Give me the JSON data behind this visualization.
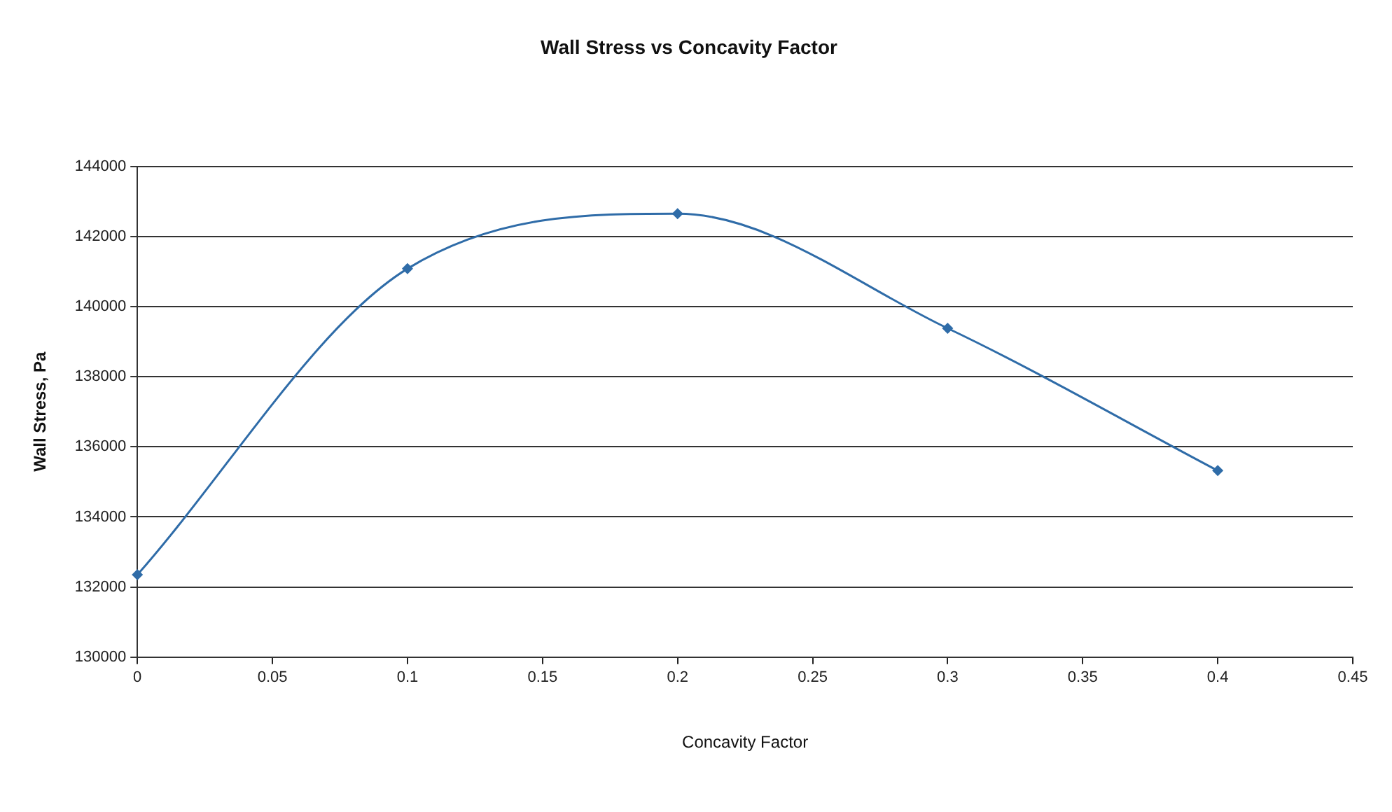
{
  "chart_data": {
    "type": "line",
    "title": "Wall Stress vs Concavity Factor",
    "xlabel": "Concavity Factor",
    "ylabel": "Wall Stress, Pa",
    "x": [
      0,
      0.1,
      0.2,
      0.3,
      0.4
    ],
    "series": [
      {
        "color": "#2f6ca8",
        "values": [
          132350,
          141080,
          142650,
          139380,
          135320
        ]
      }
    ],
    "xlim": [
      0,
      0.45
    ],
    "xticks": [
      0,
      0.05,
      0.1,
      0.15,
      0.2,
      0.25,
      0.3,
      0.35,
      0.4,
      0.45
    ],
    "ylim": [
      130000,
      144000
    ],
    "yticks": [
      130000,
      132000,
      134000,
      136000,
      138000,
      140000,
      142000,
      144000
    ],
    "grid": "y",
    "marker": "diamond",
    "line_style": "solid",
    "legend": false
  }
}
